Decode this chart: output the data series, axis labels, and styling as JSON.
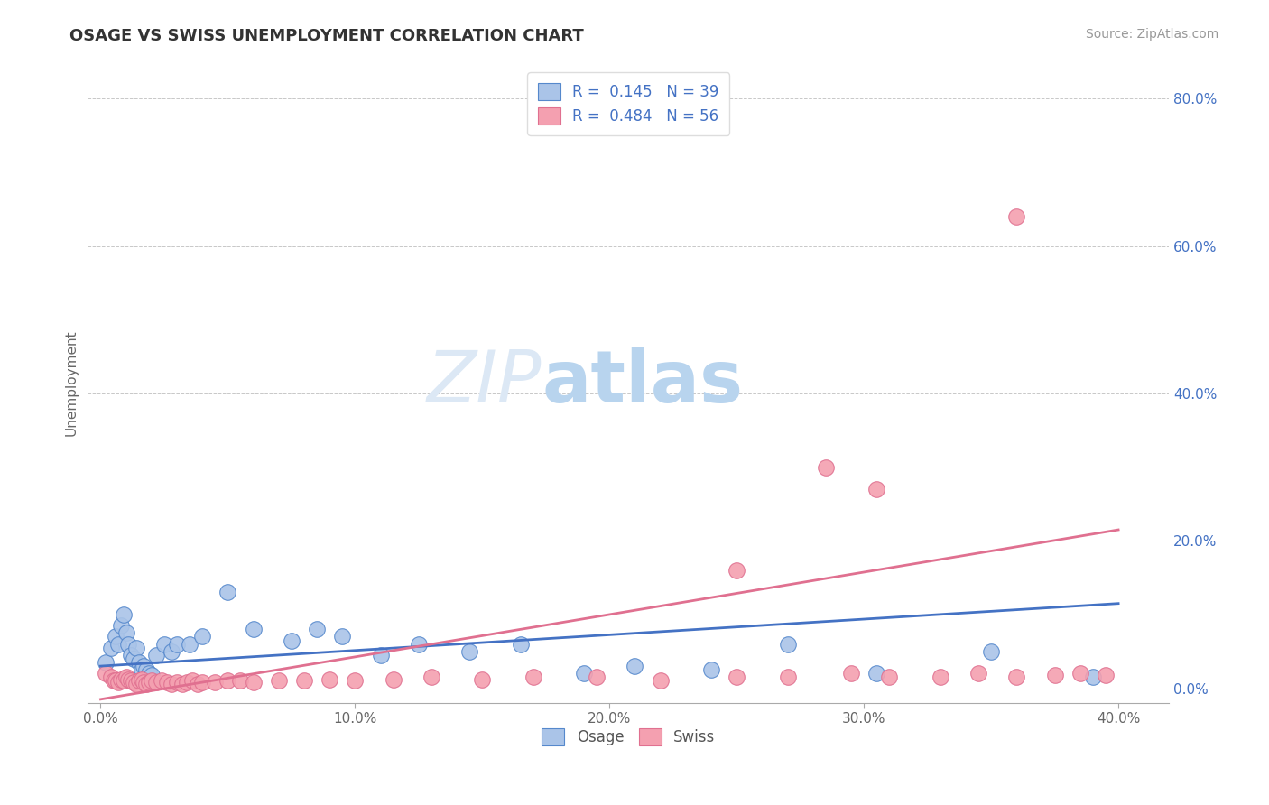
{
  "title": "OSAGE VS SWISS UNEMPLOYMENT CORRELATION CHART",
  "source_text": "Source: ZipAtlas.com",
  "ylabel": "Unemployment",
  "xlim": [
    -0.005,
    0.42
  ],
  "ylim": [
    -0.02,
    0.85
  ],
  "xticks": [
    0.0,
    0.1,
    0.2,
    0.3,
    0.4
  ],
  "xtick_labels": [
    "0.0%",
    "10.0%",
    "20.0%",
    "30.0%",
    "40.0%"
  ],
  "yticks": [
    0.0,
    0.2,
    0.4,
    0.6,
    0.8
  ],
  "ytick_labels": [
    "0.0%",
    "20.0%",
    "40.0%",
    "60.0%",
    "80.0%"
  ],
  "grid_color": "#c8c8c8",
  "bg_color": "#ffffff",
  "osage_color": "#aac4e8",
  "swiss_color": "#f4a0b0",
  "osage_edge_color": "#5588cc",
  "swiss_edge_color": "#e07090",
  "osage_line_color": "#4472c4",
  "swiss_line_color": "#e07090",
  "legend_R_osage": "0.145",
  "legend_N_osage": "39",
  "legend_R_swiss": "0.484",
  "legend_N_swiss": "56",
  "osage_x": [
    0.002,
    0.004,
    0.006,
    0.007,
    0.008,
    0.009,
    0.01,
    0.011,
    0.012,
    0.013,
    0.014,
    0.015,
    0.016,
    0.017,
    0.018,
    0.019,
    0.02,
    0.022,
    0.025,
    0.028,
    0.03,
    0.035,
    0.04,
    0.05,
    0.06,
    0.075,
    0.085,
    0.095,
    0.11,
    0.125,
    0.145,
    0.165,
    0.19,
    0.21,
    0.24,
    0.27,
    0.305,
    0.35,
    0.39
  ],
  "osage_y": [
    0.035,
    0.055,
    0.07,
    0.06,
    0.085,
    0.1,
    0.075,
    0.06,
    0.045,
    0.04,
    0.055,
    0.035,
    0.025,
    0.03,
    0.025,
    0.02,
    0.018,
    0.045,
    0.06,
    0.05,
    0.06,
    0.06,
    0.07,
    0.13,
    0.08,
    0.065,
    0.08,
    0.07,
    0.045,
    0.06,
    0.05,
    0.06,
    0.02,
    0.03,
    0.025,
    0.06,
    0.02,
    0.05,
    0.015
  ],
  "swiss_x": [
    0.002,
    0.004,
    0.005,
    0.006,
    0.007,
    0.008,
    0.009,
    0.01,
    0.011,
    0.012,
    0.013,
    0.014,
    0.015,
    0.016,
    0.017,
    0.018,
    0.019,
    0.02,
    0.022,
    0.024,
    0.026,
    0.028,
    0.03,
    0.032,
    0.034,
    0.036,
    0.038,
    0.04,
    0.045,
    0.05,
    0.055,
    0.06,
    0.07,
    0.08,
    0.09,
    0.1,
    0.115,
    0.13,
    0.15,
    0.17,
    0.195,
    0.22,
    0.25,
    0.27,
    0.295,
    0.31,
    0.33,
    0.345,
    0.36,
    0.375,
    0.385,
    0.395,
    0.285,
    0.305,
    0.25,
    0.36
  ],
  "swiss_y": [
    0.02,
    0.015,
    0.01,
    0.01,
    0.008,
    0.012,
    0.01,
    0.015,
    0.012,
    0.01,
    0.008,
    0.006,
    0.01,
    0.012,
    0.008,
    0.006,
    0.008,
    0.01,
    0.008,
    0.01,
    0.008,
    0.006,
    0.008,
    0.006,
    0.008,
    0.01,
    0.006,
    0.008,
    0.008,
    0.01,
    0.01,
    0.008,
    0.01,
    0.01,
    0.012,
    0.01,
    0.012,
    0.015,
    0.012,
    0.015,
    0.015,
    0.01,
    0.015,
    0.015,
    0.02,
    0.015,
    0.015,
    0.02,
    0.015,
    0.018,
    0.02,
    0.018,
    0.3,
    0.27,
    0.16,
    0.64
  ],
  "trend_osage_x0": 0.0,
  "trend_osage_y0": 0.03,
  "trend_osage_x1": 0.4,
  "trend_osage_y1": 0.115,
  "trend_swiss_x0": 0.0,
  "trend_swiss_y0": -0.015,
  "trend_swiss_x1": 0.4,
  "trend_swiss_y1": 0.215
}
